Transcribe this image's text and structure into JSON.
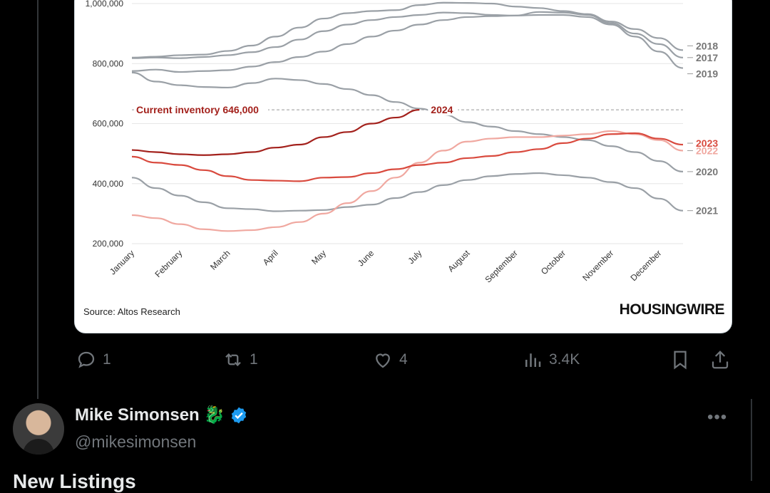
{
  "chart_data": {
    "type": "line",
    "title": "",
    "xlabel": "",
    "ylabel": "",
    "ylim": [
      200000,
      1000000
    ],
    "yticks": [
      "1,000,000",
      "800,000",
      "600,000",
      "400,000",
      "200,000"
    ],
    "ytick_values": [
      1000000,
      800000,
      600000,
      400000,
      200000
    ],
    "months": [
      "January",
      "February",
      "March",
      "April",
      "May",
      "June",
      "July",
      "August",
      "September",
      "October",
      "November",
      "December"
    ],
    "reference_line": {
      "label": "Current inventory 646,000",
      "value": 646000
    },
    "series": [
      {
        "name": "2018",
        "color": "#9aa0a6",
        "x": [
          1,
          1.5,
          2,
          2.5,
          3,
          3.5,
          4,
          4.5,
          5,
          5.5,
          6,
          6.5,
          7,
          7.5,
          8,
          8.5,
          9,
          9.5,
          10,
          10.5,
          11,
          11.5,
          12,
          12.5
        ],
        "y": [
          820000,
          823000,
          828000,
          830000,
          842000,
          860000,
          890000,
          920000,
          950000,
          968000,
          975000,
          978000,
          995000,
          1003000,
          1002000,
          1000000,
          990000,
          985000,
          975000,
          965000,
          940000,
          915000,
          885000,
          845000
        ]
      },
      {
        "name": "2017",
        "color": "#9aa0a6",
        "x": [
          1,
          1.5,
          2,
          2.5,
          3,
          3.5,
          4,
          4.5,
          5,
          5.5,
          6,
          6.5,
          7,
          7.5,
          8,
          8.5,
          9,
          9.5,
          10,
          10.5,
          11,
          11.5,
          12,
          12.5
        ],
        "y": [
          818000,
          820000,
          818000,
          822000,
          828000,
          838000,
          855000,
          880000,
          908000,
          930000,
          945000,
          955000,
          962000,
          970000,
          968000,
          962000,
          960000,
          972000,
          970000,
          962000,
          935000,
          900000,
          865000,
          820000
        ]
      },
      {
        "name": "2019",
        "color": "#9aa0a6",
        "x": [
          1,
          1.5,
          2,
          2.5,
          3,
          3.5,
          4,
          4.5,
          5,
          5.5,
          6,
          6.5,
          7,
          7.5,
          8,
          8.5,
          9,
          9.5,
          10,
          10.5,
          11,
          11.5,
          12,
          12.5
        ],
        "y": [
          775000,
          780000,
          772000,
          775000,
          778000,
          790000,
          805000,
          822000,
          840000,
          865000,
          890000,
          910000,
          930000,
          945000,
          955000,
          958000,
          960000,
          962000,
          962000,
          955000,
          930000,
          890000,
          840000,
          785000
        ]
      },
      {
        "name": "2020",
        "color": "#9aa0a6",
        "x": [
          1,
          1.5,
          2,
          2.5,
          3,
          3.5,
          4,
          4.5,
          5,
          5.5,
          6,
          6.5,
          7,
          7.5,
          8,
          8.5,
          9,
          9.5,
          10,
          10.5,
          11,
          11.5,
          12,
          12.5
        ],
        "y": [
          770000,
          740000,
          728000,
          722000,
          720000,
          735000,
          750000,
          745000,
          732000,
          715000,
          695000,
          672000,
          650000,
          630000,
          605000,
          590000,
          575000,
          565000,
          555000,
          545000,
          525000,
          505000,
          475000,
          440000
        ]
      },
      {
        "name": "2021",
        "color": "#9aa0a6",
        "x": [
          1,
          1.5,
          2,
          2.5,
          3,
          3.5,
          4,
          4.5,
          5,
          5.5,
          6,
          6.5,
          7,
          7.5,
          8,
          8.5,
          9,
          9.5,
          10,
          10.5,
          11,
          11.5,
          12,
          12.5
        ],
        "y": [
          420000,
          385000,
          360000,
          338000,
          318000,
          315000,
          308000,
          310000,
          312000,
          322000,
          330000,
          352000,
          372000,
          395000,
          412000,
          425000,
          432000,
          435000,
          428000,
          420000,
          405000,
          385000,
          350000,
          310000
        ]
      },
      {
        "name": "2022",
        "color": "#f0a8a0",
        "x": [
          1,
          1.5,
          2,
          2.5,
          3,
          3.5,
          4,
          4.5,
          5,
          5.5,
          6,
          6.5,
          7,
          7.5,
          8,
          8.5,
          9,
          9.5,
          10,
          10.5,
          11,
          11.5,
          12,
          12.5
        ],
        "y": [
          295000,
          285000,
          265000,
          248000,
          242000,
          245000,
          255000,
          272000,
          300000,
          335000,
          375000,
          420000,
          470000,
          510000,
          540000,
          550000,
          555000,
          555000,
          560000,
          565000,
          575000,
          565000,
          545000,
          510000
        ]
      },
      {
        "name": "2023",
        "color": "#d94a3e",
        "x": [
          1,
          1.5,
          2,
          2.5,
          3,
          3.5,
          4,
          4.5,
          5,
          5.5,
          6,
          6.5,
          7,
          7.5,
          8,
          8.5,
          9,
          9.5,
          10,
          10.5,
          11,
          11.5,
          12,
          12.5
        ],
        "y": [
          490000,
          470000,
          462000,
          445000,
          425000,
          412000,
          410000,
          408000,
          420000,
          422000,
          435000,
          448000,
          462000,
          470000,
          485000,
          492000,
          505000,
          515000,
          535000,
          550000,
          565000,
          568000,
          550000,
          530000
        ]
      },
      {
        "name": "2024",
        "color": "#a3211c",
        "x": [
          1,
          1.5,
          2,
          2.5,
          3,
          3.5,
          4,
          4.5,
          5,
          5.5,
          6,
          6.5,
          7
        ],
        "y": [
          512000,
          505000,
          498000,
          495000,
          498000,
          505000,
          520000,
          530000,
          555000,
          572000,
          600000,
          620000,
          646000
        ]
      }
    ]
  },
  "source_label": "Source: Altos Research",
  "brand_label": "HOUSINGWIRE",
  "actions": {
    "reply_count": "1",
    "repost_count": "1",
    "like_count": "4",
    "views_count": "3.4K"
  },
  "user": {
    "name": "Mike Simonsen",
    "handle": "@mikesimonsen",
    "emoji": "🐉",
    "more_label": "•••"
  },
  "next_post_text": "New Listings",
  "colors": {
    "background": "#000000",
    "muted": "#71767b",
    "verified": "#1d9bf0"
  }
}
